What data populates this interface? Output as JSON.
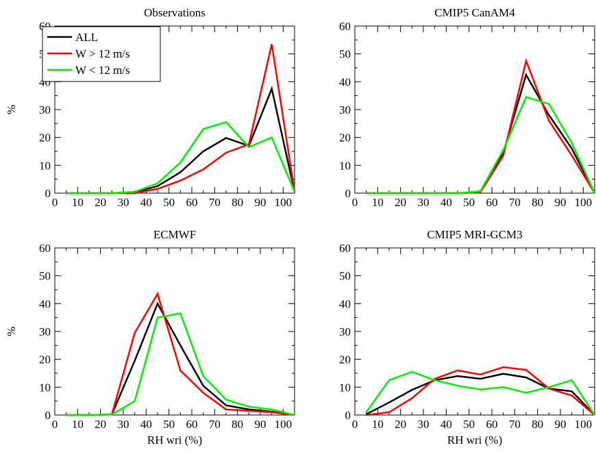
{
  "chart_data": [
    {
      "type": "line",
      "title": "Observations",
      "xlabel": "",
      "ylabel": "%",
      "xlim": [
        0,
        105
      ],
      "ylim": [
        0,
        60
      ],
      "xticks": [
        0,
        10,
        20,
        30,
        40,
        50,
        60,
        70,
        80,
        90,
        100
      ],
      "yticks": [
        0,
        10,
        20,
        30,
        40,
        50,
        60
      ],
      "legend": "top-left",
      "x": [
        5,
        15,
        25,
        35,
        45,
        55,
        65,
        75,
        85,
        95,
        105
      ],
      "series": [
        {
          "name": "ALL",
          "color": "#000000",
          "values": [
            0,
            0,
            0,
            0.3,
            2.5,
            7.5,
            15,
            19.8,
            17,
            37.5,
            0.5
          ]
        },
        {
          "name": "W > 12 m/s",
          "color": "#ff0000",
          "values": [
            0,
            0,
            0,
            0,
            1.5,
            4.5,
            8.5,
            14.5,
            17.5,
            53.5,
            0.5
          ]
        },
        {
          "name": "W < 12 m/s",
          "color": "#00ee00",
          "values": [
            0,
            0,
            0,
            0.5,
            3.5,
            11,
            23,
            25.5,
            16.5,
            20,
            0.5
          ]
        }
      ]
    },
    {
      "type": "line",
      "title": "CMIP5 CanAM4",
      "xlabel": "",
      "ylabel": "",
      "xlim": [
        0,
        105
      ],
      "ylim": [
        0,
        60
      ],
      "xticks": [
        0,
        10,
        20,
        30,
        40,
        50,
        60,
        70,
        80,
        90,
        100
      ],
      "yticks": [
        0,
        10,
        20,
        30,
        40,
        50,
        60
      ],
      "x": [
        5,
        15,
        25,
        35,
        45,
        55,
        65,
        75,
        85,
        95,
        105
      ],
      "series": [
        {
          "name": "ALL",
          "color": "#000000",
          "values": [
            0,
            0,
            0,
            0,
            0,
            0.5,
            14.5,
            42.5,
            28,
            16,
            0
          ]
        },
        {
          "name": "W > 12 m/s",
          "color": "#ff0000",
          "values": [
            0,
            0,
            0,
            0,
            0,
            0.3,
            13.5,
            47.5,
            26,
            13.5,
            0
          ]
        },
        {
          "name": "W < 12 m/s",
          "color": "#00ee00",
          "values": [
            0,
            0,
            0,
            0,
            0,
            0.7,
            15.5,
            34.5,
            32,
            18,
            0
          ]
        }
      ]
    },
    {
      "type": "line",
      "title": "ECMWF",
      "xlabel": "RH wri (%)",
      "ylabel": "%",
      "xlim": [
        0,
        105
      ],
      "ylim": [
        0,
        60
      ],
      "xticks": [
        0,
        10,
        20,
        30,
        40,
        50,
        60,
        70,
        80,
        90,
        100
      ],
      "yticks": [
        0,
        10,
        20,
        30,
        40,
        50,
        60
      ],
      "x": [
        5,
        15,
        25,
        35,
        45,
        55,
        65,
        75,
        85,
        95,
        105
      ],
      "series": [
        {
          "name": "ALL",
          "color": "#000000",
          "values": [
            0,
            0,
            0.2,
            19.5,
            40,
            25,
            10.5,
            3.5,
            2,
            1.2,
            0
          ]
        },
        {
          "name": "W > 12 m/s",
          "color": "#ff0000",
          "values": [
            0,
            0,
            0.2,
            29.5,
            43.5,
            16,
            8,
            2,
            1.5,
            1,
            0
          ]
        },
        {
          "name": "W < 12 m/s",
          "color": "#00ee00",
          "values": [
            0,
            0,
            0.2,
            5,
            35,
            36.5,
            14,
            5.5,
            3,
            2,
            0
          ]
        }
      ]
    },
    {
      "type": "line",
      "title": "CMIP5 MRI-GCM3",
      "xlabel": "RH wri (%)",
      "ylabel": "",
      "xlim": [
        0,
        105
      ],
      "ylim": [
        0,
        60
      ],
      "xticks": [
        0,
        10,
        20,
        30,
        40,
        50,
        60,
        70,
        80,
        90,
        100
      ],
      "yticks": [
        0,
        10,
        20,
        30,
        40,
        50,
        60
      ],
      "x": [
        5,
        15,
        25,
        35,
        45,
        55,
        65,
        75,
        85,
        95,
        105
      ],
      "series": [
        {
          "name": "ALL",
          "color": "#000000",
          "values": [
            0.3,
            4.5,
            9,
            12.5,
            14,
            13,
            14.8,
            13.5,
            9.5,
            8.5,
            0
          ]
        },
        {
          "name": "W > 12 m/s",
          "color": "#ff0000",
          "values": [
            0,
            1,
            6,
            13,
            16,
            14.5,
            17.2,
            16.2,
            9.5,
            7,
            0
          ]
        },
        {
          "name": "W < 12 m/s",
          "color": "#00ee00",
          "values": [
            1,
            12.5,
            15.5,
            12.5,
            10.5,
            9.2,
            10,
            8,
            10,
            12.5,
            0
          ]
        }
      ]
    }
  ]
}
